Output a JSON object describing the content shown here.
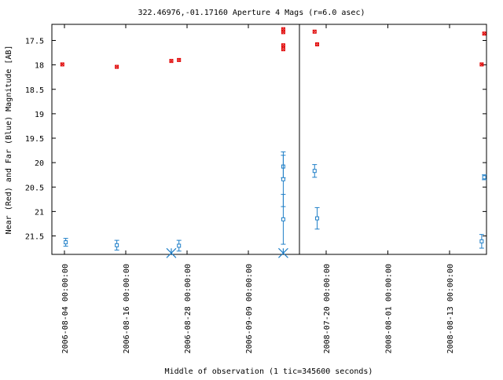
{
  "chart_data": {
    "type": "scatter",
    "title": "322.46976,-01.17160   Aperture 4 Mags (r=6.0 asec)",
    "xlabel": "Middle of observation (1 tic=345600 seconds)",
    "ylabel": "Near (Red) and Far (Blue) Magnitude [AB]",
    "y_inverted": true,
    "ylim": [
      21.85,
      17.3
    ],
    "y_ticks": [
      "17.5",
      "18",
      "18.5",
      "19",
      "19.5",
      "20",
      "20.5",
      "21",
      "21.5"
    ],
    "grid": false,
    "legend": "none",
    "colors": {
      "near": "#e00000",
      "far": "#1f7fc8",
      "axes": "#000000",
      "background": "#ffffff"
    },
    "panels": [
      {
        "x_ticks": [
          "2006-08-04 00:00:00",
          "2006-08-16 00:00:00",
          "2006-08-28 00:00:00",
          "2006-09-09 00:00:00"
        ],
        "near_points": [
          {
            "x": "2006-08-03 14:00",
            "y": 17.99
          },
          {
            "x": "2006-08-14 06:00",
            "y": 18.04
          },
          {
            "x": "2006-08-24 22:00",
            "y": 17.92
          },
          {
            "x": "2006-08-26 10:00",
            "y": 17.9
          },
          {
            "x": "2006-09-15 20:00",
            "y": 17.27
          },
          {
            "x": "2006-09-15 20:00",
            "y": 17.33
          },
          {
            "x": "2006-09-15 20:00",
            "y": 17.6
          },
          {
            "x": "2006-09-15 20:00",
            "y": 17.68
          }
        ],
        "far_points": [
          {
            "x": "2006-08-04 06:00",
            "y": 21.63,
            "err": 0.08
          },
          {
            "x": "2006-08-14 06:00",
            "y": 21.69,
            "err": 0.1
          },
          {
            "x": "2006-08-26 10:00",
            "y": 21.7,
            "err": 0.11
          },
          {
            "x": "2006-09-15 20:00",
            "y": 20.08,
            "err": 0.23
          },
          {
            "x": "2006-09-15 20:00",
            "y": 20.34,
            "err": 0.56
          },
          {
            "x": "2006-09-15 20:00",
            "y": 21.16,
            "err": 0.51
          }
        ],
        "limit_points": [
          {
            "x": "2006-08-24 22:00",
            "y": 21.85
          },
          {
            "x": "2006-09-15 20:00",
            "y": 21.85
          }
        ]
      },
      {
        "x_ticks": [
          "2008-07-20 00:00:00",
          "2008-08-01 00:00:00",
          "2008-08-13 00:00:00"
        ],
        "near_points": [
          {
            "x": "2008-07-17 18:00",
            "y": 17.32
          },
          {
            "x": "2008-07-18 06:00",
            "y": 17.58
          },
          {
            "x": "2008-08-19 18:00",
            "y": 17.36
          },
          {
            "x": "2008-08-19 06:00",
            "y": 17.99
          }
        ],
        "far_points": [
          {
            "x": "2008-07-17 18:00",
            "y": 20.17,
            "err": 0.13
          },
          {
            "x": "2008-07-18 06:00",
            "y": 21.14,
            "err": 0.22
          },
          {
            "x": "2008-08-19 06:00",
            "y": 21.61,
            "err": 0.14
          },
          {
            "x": "2008-08-19 18:00",
            "y": 20.3,
            "err": 0.05
          }
        ]
      }
    ]
  }
}
